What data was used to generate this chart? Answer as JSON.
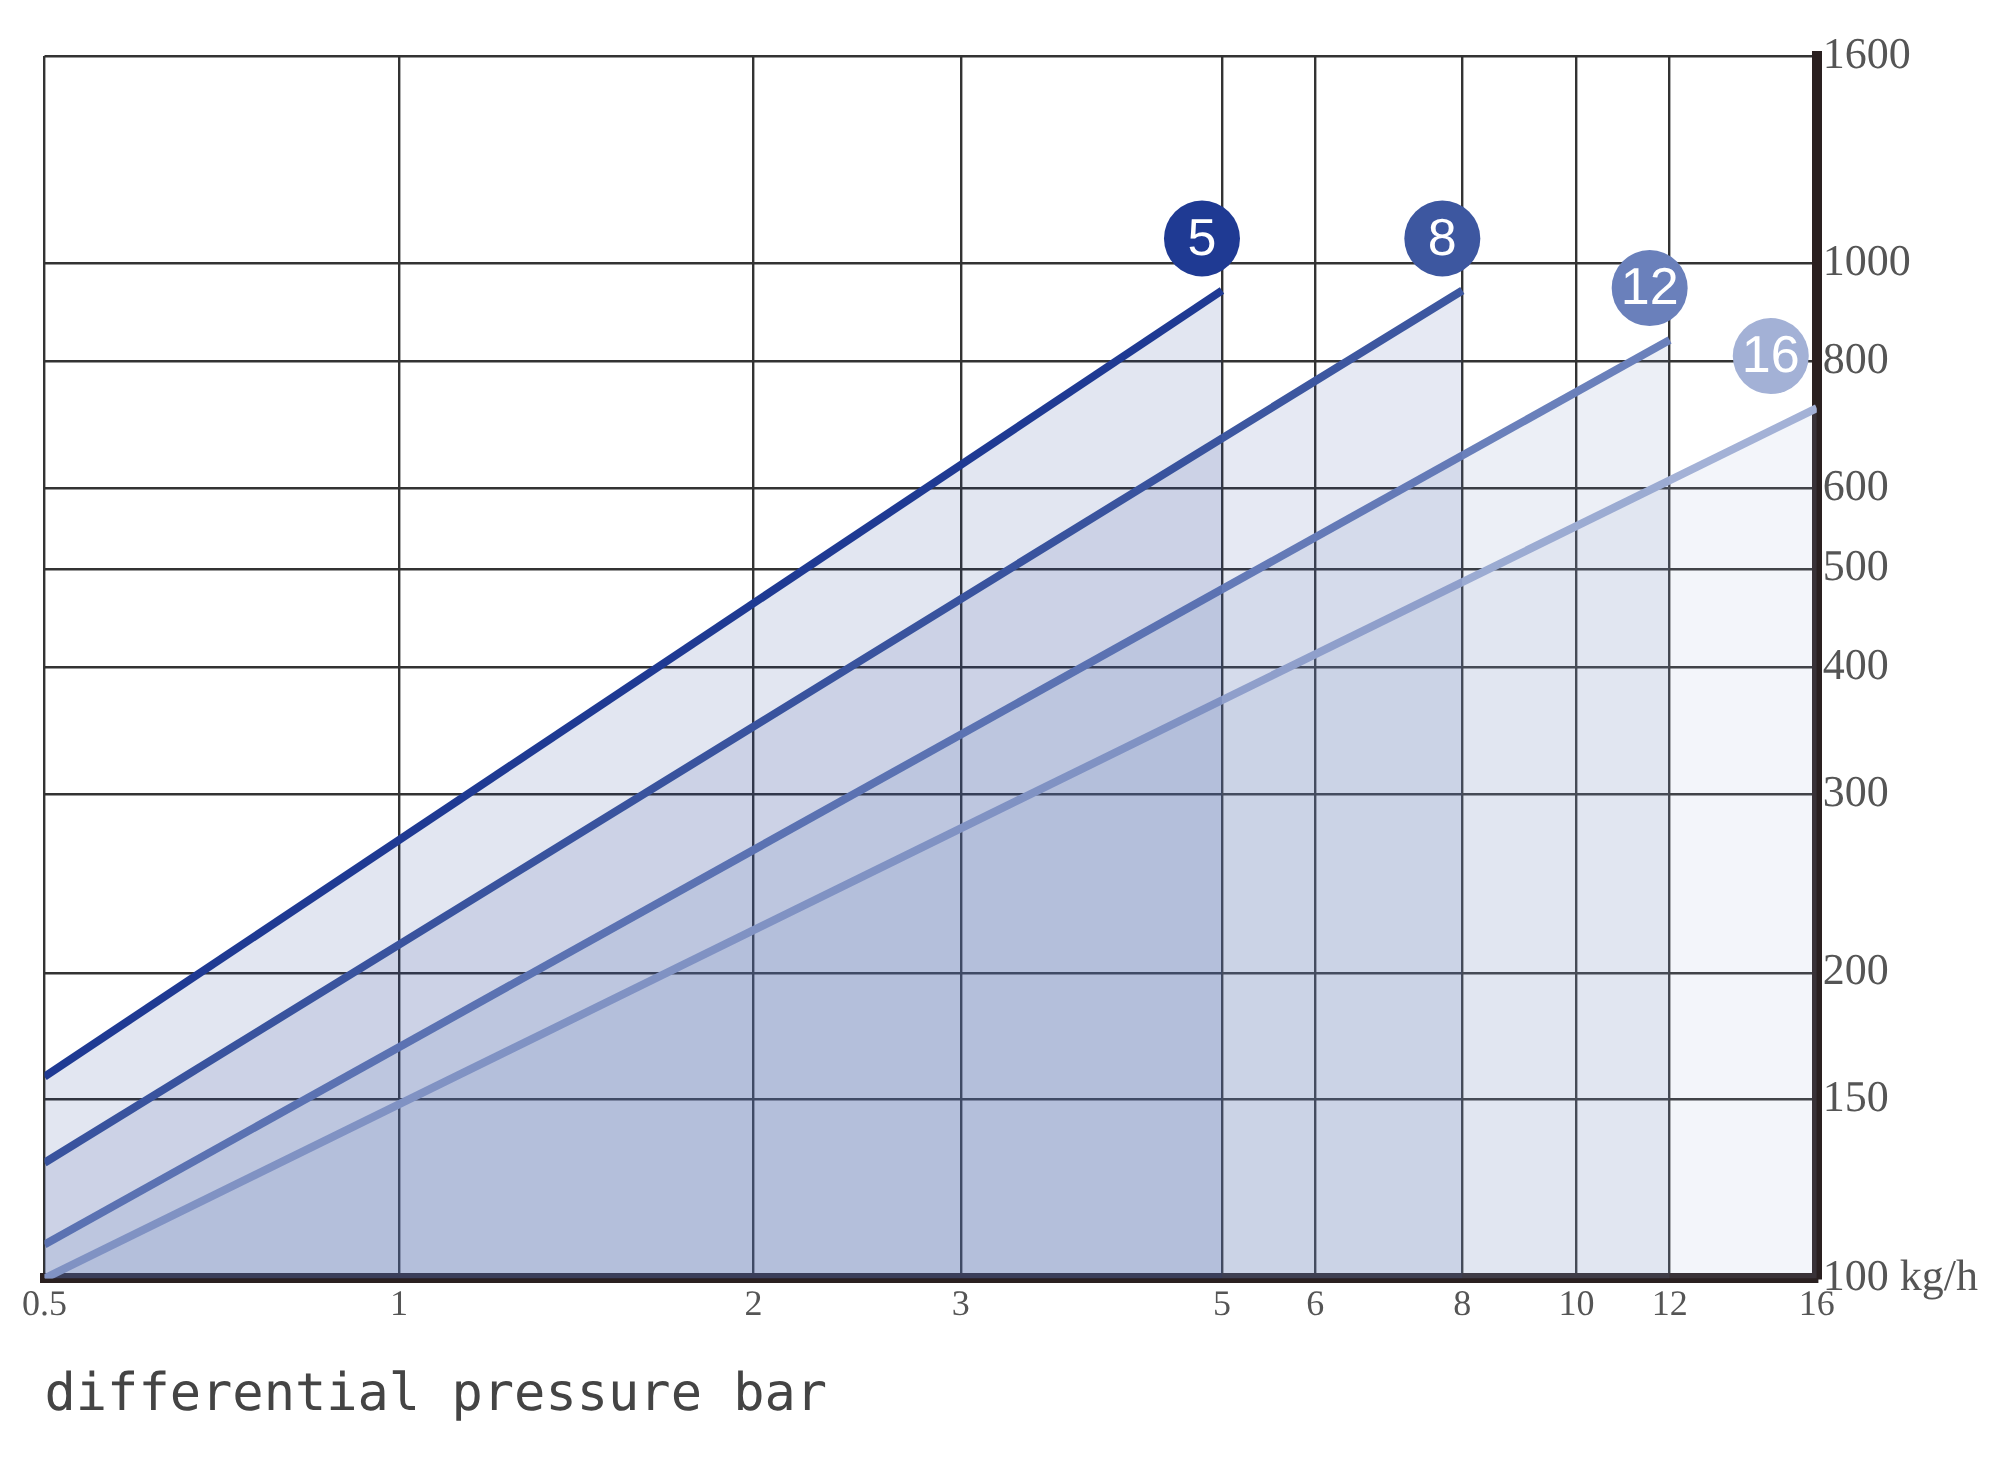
{
  "chart_data": {
    "type": "area",
    "xlabel": "differential pressure bar",
    "xlim": [
      0.5,
      16
    ],
    "xticks": [
      {
        "value": 0.5,
        "label": "0.5"
      },
      1,
      2,
      3,
      5,
      6,
      8,
      10,
      12,
      16
    ],
    "ylim": [
      100,
      1600
    ],
    "yticks": [
      {
        "value": 100,
        "label": "100 kg/h"
      },
      150,
      200,
      300,
      400,
      500,
      600,
      800,
      1000,
      1600
    ],
    "grid": true,
    "legend": false,
    "log": "xy",
    "series": [
      {
        "name": "5",
        "color": "#1f3a93",
        "x": [
          0.5,
          5
        ],
        "values": [
          158,
          940
        ]
      },
      {
        "name": "8",
        "color": "#3d57a0",
        "x": [
          0.5,
          8
        ],
        "values": [
          130,
          940
        ]
      },
      {
        "name": "12",
        "color": "#6a80bb",
        "x": [
          0.5,
          12
        ],
        "values": [
          108,
          840
        ]
      },
      {
        "name": "16",
        "color": "#a3b1d6",
        "x": [
          0.5,
          16
        ],
        "values": [
          100,
          720
        ]
      }
    ]
  }
}
